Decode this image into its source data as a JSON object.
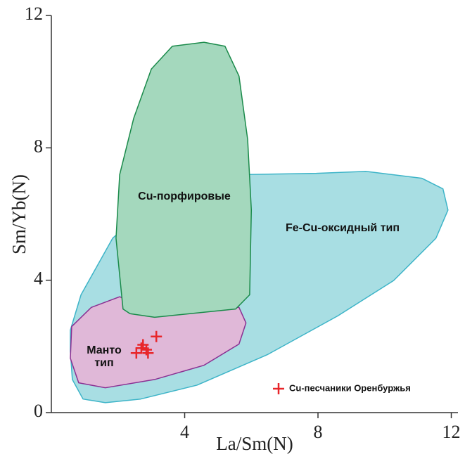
{
  "chart_data": {
    "type": "scatter",
    "xlabel": "La/Sm(N)",
    "ylabel": "Sm/Yb(N)",
    "xlim": [
      0,
      12.2
    ],
    "ylim": [
      0,
      12
    ],
    "xticks": [
      4,
      8,
      12
    ],
    "yticks": [
      0,
      4,
      8,
      12
    ],
    "regions": [
      {
        "name": "Fe-Cu-оксидный тип",
        "fill": "#a8dee3",
        "stroke": "#3db4c8",
        "x": [
          0.57,
          0.89,
          1.84,
          3.52,
          5.63,
          7.95,
          9.43,
          11.12,
          11.75,
          11.9,
          11.54,
          10.27,
          8.59,
          6.48,
          4.37,
          2.68,
          1.62,
          0.95,
          0.63,
          0.57
        ],
        "y": [
          2.49,
          3.56,
          5.27,
          6.76,
          7.19,
          7.23,
          7.29,
          7.08,
          6.76,
          6.12,
          5.27,
          3.99,
          2.92,
          1.75,
          0.83,
          0.41,
          0.3,
          0.41,
          1.0,
          1.86
        ]
      },
      {
        "name": "Манто тип",
        "fill": "#e0b8d8",
        "stroke": "#8a3092",
        "x": [
          0.61,
          1.2,
          2.05,
          2.68,
          5.63,
          5.84,
          5.63,
          4.58,
          3.1,
          1.62,
          0.82,
          0.57
        ],
        "y": [
          2.6,
          3.18,
          3.5,
          3.24,
          3.18,
          2.71,
          2.07,
          1.43,
          1.0,
          0.75,
          0.9,
          1.64
        ]
      },
      {
        "name": "Cu-порфировые",
        "fill": "#a4d8bd",
        "stroke": "#1a8a4a",
        "x": [
          2.15,
          1.94,
          2.05,
          2.47,
          3.0,
          3.63,
          4.58,
          5.21,
          5.63,
          5.89,
          6.0,
          5.95,
          5.53,
          3.1,
          2.36
        ],
        "y": [
          3.13,
          5.27,
          7.19,
          8.89,
          10.38,
          11.07,
          11.19,
          11.07,
          10.17,
          8.25,
          6.12,
          3.56,
          3.13,
          2.88,
          2.99
        ]
      }
    ],
    "series": [
      {
        "name": "Cu-песчаники Оренбуржья",
        "color": "#e8262a",
        "x": [
          3.15,
          2.75,
          2.7,
          2.55,
          2.9,
          2.85
        ],
        "y": [
          2.3,
          2.05,
          1.95,
          1.8,
          1.8,
          1.9
        ]
      }
    ],
    "legend": "lower right"
  }
}
